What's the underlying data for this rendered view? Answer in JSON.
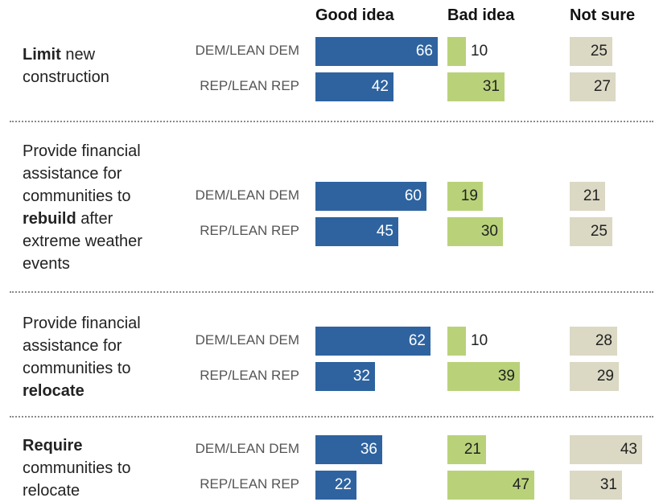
{
  "chart_data": {
    "type": "bar",
    "orientation": "horizontal",
    "columns": [
      "Good idea",
      "Bad idea",
      "Not sure"
    ],
    "colors": {
      "Good idea": "#2e63a0",
      "Bad idea": "#b9d27a",
      "Not sure": "#dbd8c4"
    },
    "groups": [
      {
        "label_parts": [
          {
            "text": "Limit",
            "bold": true
          },
          {
            "text": " new construction",
            "bold": false
          }
        ],
        "rows": [
          {
            "party": "DEM/LEAN DEM",
            "values": [
              66,
              10,
              25
            ]
          },
          {
            "party": "REP/LEAN REP",
            "values": [
              42,
              31,
              27
            ]
          }
        ]
      },
      {
        "label_parts": [
          {
            "text": "Provide financial assistance for communities to ",
            "bold": false
          },
          {
            "text": "rebuild",
            "bold": true
          },
          {
            "text": " after extreme weather events",
            "bold": false
          }
        ],
        "rows": [
          {
            "party": "DEM/LEAN DEM",
            "values": [
              60,
              19,
              21
            ]
          },
          {
            "party": "REP/LEAN REP",
            "values": [
              45,
              30,
              25
            ]
          }
        ]
      },
      {
        "label_parts": [
          {
            "text": "Provide financial assistance for communities to ",
            "bold": false
          },
          {
            "text": "relocate",
            "bold": true
          }
        ],
        "rows": [
          {
            "party": "DEM/LEAN DEM",
            "values": [
              62,
              10,
              28
            ]
          },
          {
            "party": "REP/LEAN REP",
            "values": [
              32,
              39,
              29
            ]
          }
        ]
      },
      {
        "label_parts": [
          {
            "text": "Require",
            "bold": true
          },
          {
            "text": " communities to relocate",
            "bold": false
          }
        ],
        "rows": [
          {
            "party": "DEM/LEAN DEM",
            "values": [
              36,
              21,
              43
            ]
          },
          {
            "party": "REP/LEAN REP",
            "values": [
              22,
              47,
              31
            ]
          }
        ]
      }
    ]
  }
}
